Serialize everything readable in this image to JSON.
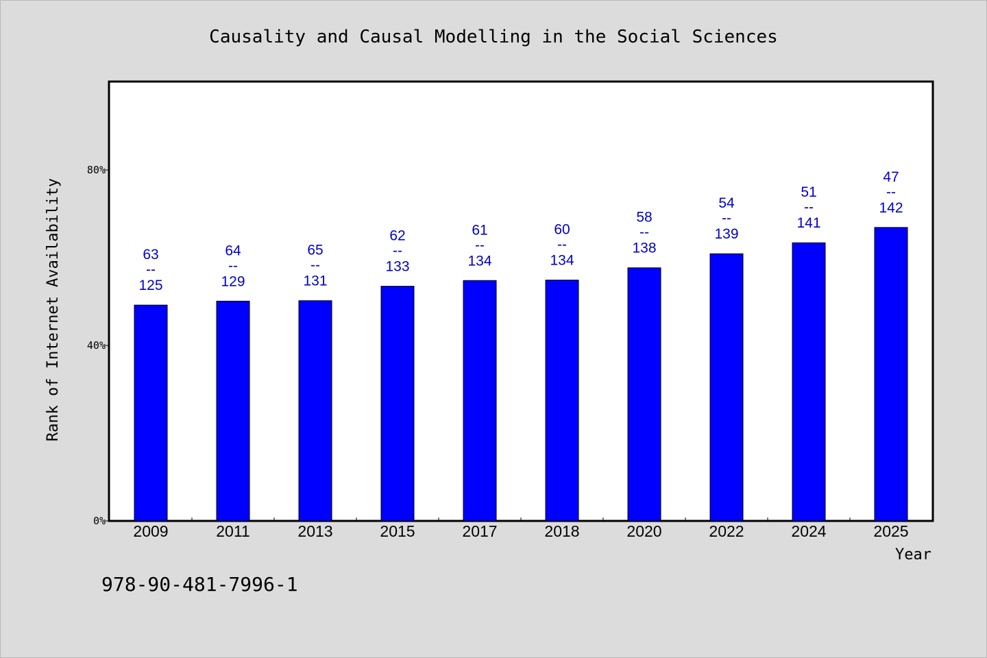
{
  "chart_data": {
    "type": "bar",
    "title": "Causality and Causal Modelling in the Social Sciences",
    "xlabel": "Year",
    "ylabel": "Rank of Internet Availability",
    "categories": [
      "2009",
      "2011",
      "2013",
      "2015",
      "2017",
      "2018",
      "2020",
      "2022",
      "2024",
      "2025"
    ],
    "values": [
      49.2,
      50.1,
      50.2,
      53.5,
      54.8,
      54.9,
      57.7,
      60.9,
      63.4,
      66.9
    ],
    "labels_top": [
      "63",
      "64",
      "65",
      "62",
      "61",
      "60",
      "58",
      "54",
      "51",
      "47"
    ],
    "labels_bottom": [
      "125",
      "129",
      "131",
      "133",
      "134",
      "134",
      "138",
      "139",
      "141",
      "142"
    ],
    "label_separator": "--",
    "ylim": [
      0,
      100
    ],
    "yticks": [
      0,
      40,
      80
    ],
    "ytick_labels": [
      "0%",
      "40%",
      "80%"
    ],
    "bar_color": "#0000ff",
    "label_color": "#0000cc",
    "grid": false
  },
  "footnote": "978-90-481-7996-1"
}
